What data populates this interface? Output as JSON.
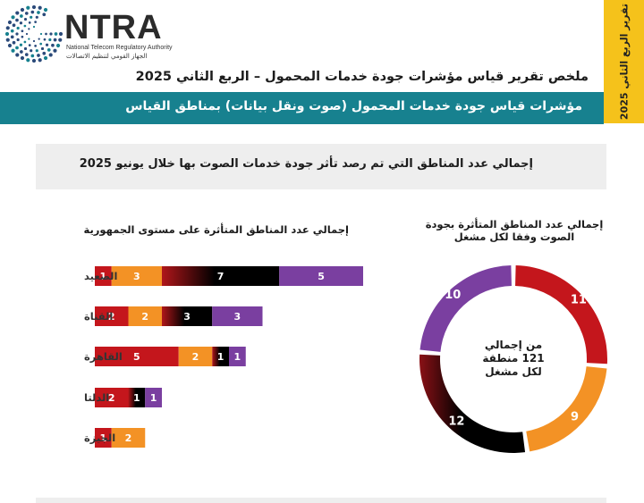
{
  "logo": {
    "word": "NTRA",
    "english": "National Telecom Regulatory Authority",
    "arabic": "الجهاز القومي لتنظيم الاتصالات"
  },
  "side_tab": "تقرير الربع الثاني 2025",
  "main_title": "ملخص تقرير قياس مؤشرات جودة خدمات المحمول – الربع الثاني 2025",
  "subtitle": "مؤشرات قياس جودة خدمات المحمول (صوت ونقل بيانات)  بمناطق القياس",
  "section_title": "إجمالي عدد المناطق التي تم رصد تأثر جودة خدمات الصوت بها خلال يونيو  2025",
  "colors": {
    "red": "#c4161c",
    "orange": "#f39225",
    "black_gradient": "#000000",
    "purple": "#7a3fa0",
    "teal": "#17818f",
    "yellow": "#f5c21b"
  },
  "chart_data": [
    {
      "type": "bar",
      "orientation": "horizontal-stacked",
      "title": "إجمالي عدد المناطق المتأثرة على مستوى الجمهورية",
      "categories": [
        "الصعيد",
        "القناة",
        "القاهرة",
        "الدلتا",
        "الجيزة"
      ],
      "series": [
        {
          "color": "#c4161c",
          "values": [
            1,
            2,
            5,
            2,
            1
          ]
        },
        {
          "color": "#f39225",
          "values": [
            3,
            2,
            2,
            0,
            2
          ]
        },
        {
          "color": "#000000",
          "values": [
            7,
            3,
            1,
            1,
            0
          ]
        },
        {
          "color": "#7a3fa0",
          "values": [
            5,
            3,
            1,
            1,
            0
          ]
        }
      ]
    },
    {
      "type": "pie",
      "variant": "donut",
      "title": "إجمالي عدد المناطق المتأثرة بجودة الصوت وفقا لكل مشغل",
      "center_label": "من إجمالي 121 منطقة لكل مشغل",
      "slices": [
        {
          "value": 11,
          "color": "#c4161c"
        },
        {
          "value": 9,
          "color": "#f39225"
        },
        {
          "value": 12,
          "color": "#000000"
        },
        {
          "value": 10,
          "color": "#7a3fa0"
        }
      ]
    }
  ]
}
